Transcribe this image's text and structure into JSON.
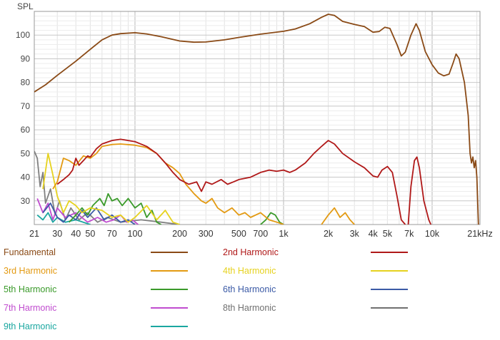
{
  "chart_data": {
    "type": "line",
    "title": "",
    "ylabel": "SPL",
    "xlabel": "",
    "x_scale": "log",
    "xlim": [
      21,
      21000
    ],
    "ylim": [
      20,
      110
    ],
    "y_ticks": [
      30,
      40,
      50,
      60,
      70,
      80,
      90,
      100
    ],
    "x_ticks": [
      {
        "value": 21,
        "label": "21"
      },
      {
        "value": 30,
        "label": "30"
      },
      {
        "value": 40,
        "label": "40"
      },
      {
        "value": 50,
        "label": "50"
      },
      {
        "value": 70,
        "label": "70"
      },
      {
        "value": 100,
        "label": "100"
      },
      {
        "value": 200,
        "label": "200"
      },
      {
        "value": 300,
        "label": "300"
      },
      {
        "value": 500,
        "label": "500"
      },
      {
        "value": 700,
        "label": "700"
      },
      {
        "value": 1000,
        "label": "1k"
      },
      {
        "value": 2000,
        "label": "2k"
      },
      {
        "value": 3000,
        "label": "3k"
      },
      {
        "value": 4000,
        "label": "4k"
      },
      {
        "value": 5000,
        "label": "5k"
      },
      {
        "value": 7000,
        "label": "7k"
      },
      {
        "value": 10000,
        "label": "10k"
      },
      {
        "value": 21000,
        "label": "21kHz"
      }
    ],
    "grid": true,
    "legend_position": "bottom",
    "series": [
      {
        "name": "Fundamental",
        "color": "#8a4a16",
        "points": [
          [
            21,
            76
          ],
          [
            25,
            79
          ],
          [
            30,
            83
          ],
          [
            40,
            89
          ],
          [
            50,
            94
          ],
          [
            60,
            98
          ],
          [
            70,
            100
          ],
          [
            80,
            100.6
          ],
          [
            100,
            101
          ],
          [
            120,
            100.5
          ],
          [
            150,
            99.3
          ],
          [
            200,
            97.5
          ],
          [
            250,
            97
          ],
          [
            300,
            97.1
          ],
          [
            400,
            98
          ],
          [
            500,
            99
          ],
          [
            700,
            100.4
          ],
          [
            1000,
            101.6
          ],
          [
            1200,
            102.6
          ],
          [
            1500,
            104.8
          ],
          [
            1800,
            107.5
          ],
          [
            2000,
            108.8
          ],
          [
            2200,
            108.3
          ],
          [
            2500,
            105.8
          ],
          [
            3000,
            104.5
          ],
          [
            3500,
            103.6
          ],
          [
            4000,
            101.2
          ],
          [
            4400,
            101.5
          ],
          [
            4800,
            103.3
          ],
          [
            5200,
            102.8
          ],
          [
            5800,
            96
          ],
          [
            6200,
            91.2
          ],
          [
            6600,
            92.8
          ],
          [
            7200,
            100
          ],
          [
            7800,
            104.8
          ],
          [
            8200,
            102
          ],
          [
            9000,
            93
          ],
          [
            10000,
            87.5
          ],
          [
            11000,
            84
          ],
          [
            12000,
            82.8
          ],
          [
            13000,
            83.5
          ],
          [
            13800,
            88
          ],
          [
            14500,
            92
          ],
          [
            15200,
            90
          ],
          [
            16500,
            80
          ],
          [
            17500,
            66
          ],
          [
            18000,
            50
          ],
          [
            18400,
            46
          ],
          [
            18800,
            48.5
          ],
          [
            19200,
            44
          ],
          [
            19600,
            47
          ],
          [
            20000,
            40
          ],
          [
            20500,
            20
          ]
        ]
      },
      {
        "name": "2nd Harmonic",
        "color": "#b01818",
        "points": [
          [
            30,
            37
          ],
          [
            33,
            39
          ],
          [
            36,
            41
          ],
          [
            38,
            43
          ],
          [
            40,
            48
          ],
          [
            42,
            45
          ],
          [
            45,
            47
          ],
          [
            48,
            49
          ],
          [
            50,
            48.5
          ],
          [
            55,
            52
          ],
          [
            60,
            54
          ],
          [
            70,
            55.5
          ],
          [
            80,
            56
          ],
          [
            90,
            55.5
          ],
          [
            100,
            55
          ],
          [
            120,
            53
          ],
          [
            140,
            50
          ],
          [
            160,
            46
          ],
          [
            180,
            42
          ],
          [
            200,
            39
          ],
          [
            230,
            37
          ],
          [
            260,
            38
          ],
          [
            280,
            34
          ],
          [
            300,
            38
          ],
          [
            330,
            37
          ],
          [
            380,
            39
          ],
          [
            420,
            37
          ],
          [
            460,
            38
          ],
          [
            500,
            39
          ],
          [
            600,
            40
          ],
          [
            700,
            42
          ],
          [
            800,
            43
          ],
          [
            900,
            42.5
          ],
          [
            1000,
            43
          ],
          [
            1100,
            42
          ],
          [
            1200,
            43
          ],
          [
            1400,
            46
          ],
          [
            1600,
            50
          ],
          [
            1800,
            53
          ],
          [
            2000,
            55.5
          ],
          [
            2200,
            54
          ],
          [
            2500,
            50
          ],
          [
            3000,
            46.5
          ],
          [
            3500,
            44
          ],
          [
            4000,
            40.5
          ],
          [
            4300,
            40
          ],
          [
            4600,
            43
          ],
          [
            5000,
            44.5
          ],
          [
            5400,
            42
          ],
          [
            5800,
            32
          ],
          [
            6200,
            22
          ],
          [
            6600,
            20
          ]
        ]
      },
      {
        "name": "2nd Harmonic",
        "color": "#b01818",
        "points": [
          [
            6900,
            20
          ],
          [
            7200,
            36
          ],
          [
            7600,
            47
          ],
          [
            7900,
            48.5
          ],
          [
            8200,
            44
          ],
          [
            8800,
            30
          ],
          [
            9500,
            22
          ],
          [
            9800,
            20
          ]
        ]
      },
      {
        "name": "3rd Harmonic",
        "color": "#e39a12",
        "points": [
          [
            28,
            35
          ],
          [
            30,
            38
          ],
          [
            33,
            48
          ],
          [
            36,
            47
          ],
          [
            40,
            45
          ],
          [
            45,
            49
          ],
          [
            50,
            48
          ],
          [
            55,
            50
          ],
          [
            60,
            53
          ],
          [
            70,
            53.8
          ],
          [
            80,
            54
          ],
          [
            100,
            53.5
          ],
          [
            120,
            52.5
          ],
          [
            140,
            50
          ],
          [
            160,
            46
          ],
          [
            180,
            44
          ],
          [
            200,
            41.5
          ],
          [
            220,
            37
          ],
          [
            250,
            33
          ],
          [
            280,
            30
          ],
          [
            300,
            29
          ],
          [
            330,
            31
          ],
          [
            360,
            27
          ],
          [
            400,
            25
          ],
          [
            450,
            27
          ],
          [
            500,
            24
          ],
          [
            550,
            25
          ],
          [
            600,
            23
          ],
          [
            700,
            25
          ],
          [
            800,
            22
          ],
          [
            900,
            21
          ],
          [
            1000,
            20
          ]
        ]
      },
      {
        "name": "3rd Harmonic",
        "color": "#e39a12",
        "points": [
          [
            1800,
            20
          ],
          [
            2000,
            24
          ],
          [
            2200,
            27
          ],
          [
            2400,
            23
          ],
          [
            2600,
            25
          ],
          [
            2800,
            22
          ],
          [
            3000,
            20
          ]
        ]
      },
      {
        "name": "4th Harmonic",
        "color": "#e6d21e",
        "points": [
          [
            24,
            35
          ],
          [
            26,
            50
          ],
          [
            28,
            41
          ],
          [
            30,
            32
          ],
          [
            33,
            25
          ],
          [
            36,
            30
          ],
          [
            40,
            28
          ],
          [
            44,
            25
          ],
          [
            50,
            27
          ],
          [
            60,
            26
          ],
          [
            70,
            23
          ],
          [
            80,
            24
          ],
          [
            90,
            21
          ],
          [
            100,
            23
          ],
          [
            120,
            28
          ],
          [
            140,
            22
          ],
          [
            160,
            26
          ],
          [
            180,
            21
          ],
          [
            200,
            20
          ]
        ]
      },
      {
        "name": "5th Harmonic",
        "color": "#3a9a2a",
        "points": [
          [
            36,
            21
          ],
          [
            40,
            24
          ],
          [
            44,
            27
          ],
          [
            48,
            24
          ],
          [
            52,
            28
          ],
          [
            58,
            31
          ],
          [
            62,
            28
          ],
          [
            66,
            33
          ],
          [
            70,
            30
          ],
          [
            76,
            31
          ],
          [
            82,
            28
          ],
          [
            90,
            31
          ],
          [
            100,
            27
          ],
          [
            110,
            29
          ],
          [
            120,
            23
          ],
          [
            130,
            26
          ],
          [
            140,
            21
          ],
          [
            150,
            20
          ]
        ]
      },
      {
        "name": "5th Harmonic",
        "color": "#3a9a2a",
        "points": [
          [
            700,
            20
          ],
          [
            760,
            22
          ],
          [
            820,
            25
          ],
          [
            880,
            24
          ],
          [
            940,
            21
          ],
          [
            1000,
            20
          ]
        ]
      },
      {
        "name": "6th Harmonic",
        "color": "#3b5aa6",
        "points": [
          [
            24,
            25
          ],
          [
            27,
            29
          ],
          [
            30,
            23
          ],
          [
            33,
            21
          ],
          [
            36,
            24
          ],
          [
            40,
            22
          ],
          [
            44,
            26
          ],
          [
            48,
            23
          ],
          [
            55,
            27
          ],
          [
            62,
            22
          ],
          [
            70,
            24
          ],
          [
            80,
            21
          ],
          [
            90,
            22
          ],
          [
            100,
            20
          ]
        ]
      },
      {
        "name": "7th Harmonic",
        "color": "#c04ccf",
        "points": [
          [
            22,
            31
          ],
          [
            24,
            25
          ],
          [
            26,
            29
          ],
          [
            28,
            22
          ],
          [
            30,
            27
          ],
          [
            34,
            23
          ],
          [
            40,
            25
          ],
          [
            48,
            21
          ],
          [
            56,
            23
          ],
          [
            64,
            21
          ],
          [
            72,
            22
          ],
          [
            80,
            24
          ],
          [
            88,
            21
          ],
          [
            96,
            22
          ],
          [
            105,
            20
          ]
        ]
      },
      {
        "name": "8th Harmonic",
        "color": "#808080",
        "points": [
          [
            21,
            51
          ],
          [
            22,
            48
          ],
          [
            23,
            36
          ],
          [
            24,
            42
          ],
          [
            25,
            29
          ],
          [
            27,
            35
          ],
          [
            29,
            24
          ],
          [
            31,
            30
          ],
          [
            34,
            22
          ],
          [
            37,
            27
          ],
          [
            42,
            22
          ],
          [
            48,
            25
          ],
          [
            56,
            21
          ],
          [
            65,
            23
          ],
          [
            80,
            21
          ],
          [
            110,
            22
          ],
          [
            150,
            21
          ],
          [
            200,
            20
          ]
        ]
      },
      {
        "name": "9th Harmonic",
        "color": "#1aa7a0",
        "points": [
          [
            22,
            24
          ],
          [
            24,
            22
          ],
          [
            26,
            25
          ],
          [
            28,
            21
          ],
          [
            30,
            23
          ],
          [
            34,
            21
          ],
          [
            40,
            22
          ],
          [
            50,
            20
          ]
        ]
      }
    ]
  },
  "legend": [
    {
      "label": "Fundamental",
      "color": "#8a4a16"
    },
    {
      "label": "2nd Harmonic",
      "color": "#b01818"
    },
    {
      "label": "3rd Harmonic",
      "color": "#e39a12"
    },
    {
      "label": "4th Harmonic",
      "color": "#e6d21e"
    },
    {
      "label": "5th Harmonic",
      "color": "#3a9a2a"
    },
    {
      "label": "6th Harmonic",
      "color": "#3b5aa6"
    },
    {
      "label": "7th Harmonic",
      "color": "#c04ccf"
    },
    {
      "label": "8th Harmonic",
      "color": "#707070"
    },
    {
      "label": "9th Harmonic",
      "color": "#1aa7a0"
    }
  ]
}
